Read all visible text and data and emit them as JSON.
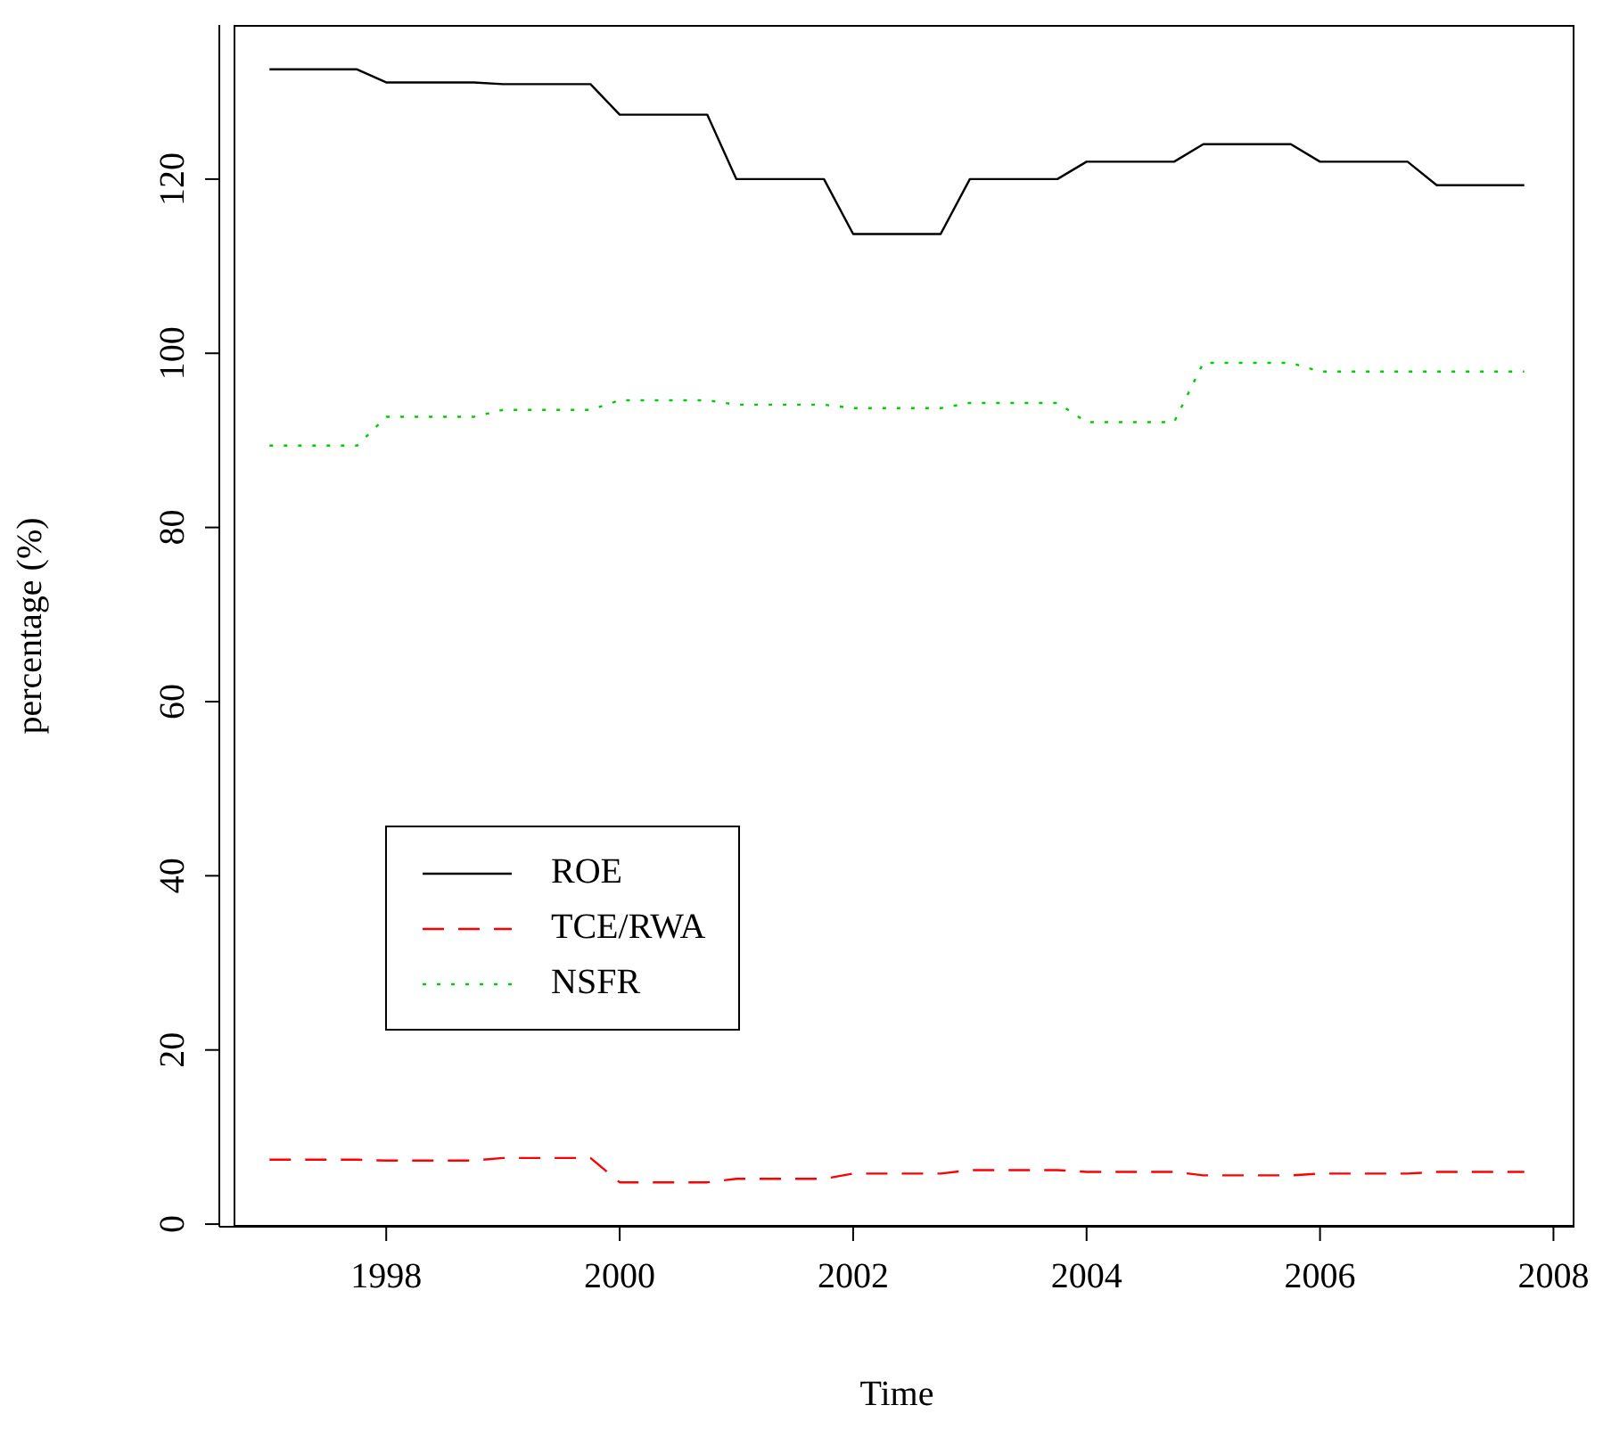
{
  "chart_data": {
    "type": "line",
    "xlabel": "Time",
    "ylabel": "percentage (%)",
    "x": [
      1997,
      1997.25,
      1997.5,
      1997.75,
      1998,
      1998.25,
      1998.5,
      1998.75,
      1999,
      1999.25,
      1999.5,
      1999.75,
      2000,
      2000.25,
      2000.5,
      2000.75,
      2001,
      2001.25,
      2001.5,
      2001.75,
      2002,
      2002.25,
      2002.5,
      2002.75,
      2003,
      2003.25,
      2003.5,
      2003.75,
      2004,
      2004.25,
      2004.5,
      2004.75,
      2005,
      2005.25,
      2005.5,
      2005.75,
      2006,
      2006.25,
      2006.5,
      2006.75,
      2007,
      2007.25,
      2007.5,
      2007.75
    ],
    "series": [
      {
        "name": "ROE",
        "color": "#000000",
        "line_style": "solid",
        "values": [
          132.6,
          132.6,
          132.6,
          132.6,
          131.1,
          131.1,
          131.1,
          131.1,
          130.9,
          130.9,
          130.9,
          130.9,
          127.4,
          127.4,
          127.4,
          127.4,
          120.0,
          120.0,
          120.0,
          120.0,
          113.7,
          113.7,
          113.7,
          113.7,
          120.0,
          120.0,
          120.0,
          120.0,
          122.0,
          122.0,
          122.0,
          122.0,
          124.0,
          124.0,
          124.0,
          124.0,
          122.0,
          122.0,
          122.0,
          122.0,
          119.3,
          119.3,
          119.3,
          119.3
        ]
      },
      {
        "name": "TCE/RWA",
        "color": "#ff0000",
        "line_style": "dashed",
        "values": [
          7.4,
          7.4,
          7.4,
          7.4,
          7.3,
          7.3,
          7.3,
          7.3,
          7.6,
          7.6,
          7.6,
          7.6,
          4.8,
          4.8,
          4.8,
          4.8,
          5.2,
          5.2,
          5.2,
          5.2,
          5.8,
          5.8,
          5.8,
          5.8,
          6.2,
          6.2,
          6.2,
          6.2,
          6.0,
          6.0,
          6.0,
          6.0,
          5.6,
          5.6,
          5.6,
          5.6,
          5.8,
          5.8,
          5.8,
          5.8,
          6.0,
          6.0,
          6.0,
          6.0
        ]
      },
      {
        "name": "NSFR",
        "color": "#00cd00",
        "line_style": "dotted",
        "values": [
          89.4,
          89.4,
          89.4,
          89.4,
          92.7,
          92.7,
          92.7,
          92.7,
          93.5,
          93.5,
          93.5,
          93.5,
          94.6,
          94.6,
          94.6,
          94.6,
          94.1,
          94.1,
          94.1,
          94.1,
          93.7,
          93.7,
          93.7,
          93.7,
          94.3,
          94.3,
          94.3,
          94.3,
          92.1,
          92.1,
          92.1,
          92.1,
          98.9,
          98.9,
          98.9,
          98.9,
          97.9,
          97.9,
          97.9,
          97.9,
          97.9,
          97.9,
          97.9,
          97.9
        ]
      }
    ],
    "xlim": [
      1996.57,
      2008.18
    ],
    "xticks": [
      1998,
      2000,
      2002,
      2004,
      2006,
      2008
    ],
    "ylim": [
      -0.3,
      137.7
    ],
    "yticks": [
      0,
      20,
      40,
      60,
      80,
      100,
      120
    ],
    "grid": false,
    "legend": "bottom left"
  }
}
